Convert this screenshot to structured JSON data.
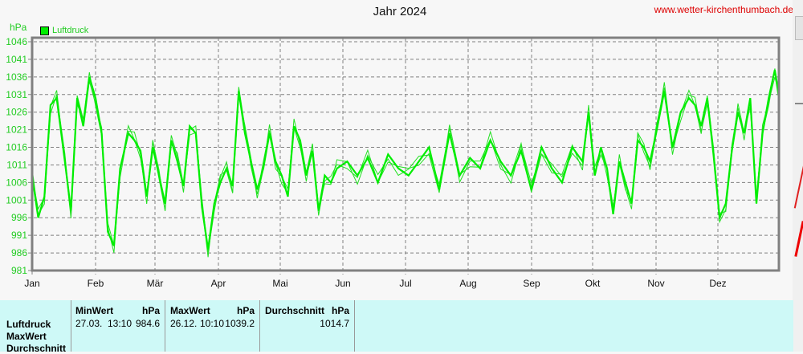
{
  "header": {
    "title": "Jahr 2024",
    "website": "www.wetter-kirchenthumbach.de",
    "unit": "hPa",
    "legend_label": "Luftdruck",
    "legend_color": "#00ee00"
  },
  "chart_data": {
    "type": "line",
    "title": "Jahr 2024",
    "xlabel": "",
    "ylabel": "hPa",
    "ylim": [
      981,
      1046
    ],
    "yticks": [
      1046,
      1041,
      1036,
      1031,
      1026,
      1021,
      1016,
      1011,
      1006,
      1001,
      996,
      991,
      986,
      981
    ],
    "xticks": [
      "Jan",
      "Feb",
      "Mär",
      "Apr",
      "Mai",
      "Jun",
      "Jul",
      "Aug",
      "Sep",
      "Okt",
      "Nov",
      "Dez"
    ],
    "grid": true,
    "legend_position": "top-left",
    "series": [
      {
        "name": "Luftdruck",
        "color": "#00ee00",
        "x_day": [
          1,
          4,
          7,
          10,
          13,
          17,
          20,
          23,
          26,
          29,
          32,
          35,
          38,
          41,
          44,
          48,
          51,
          54,
          57,
          60,
          63,
          66,
          69,
          72,
          75,
          78,
          81,
          84,
          87,
          90,
          93,
          96,
          99,
          102,
          105,
          108,
          111,
          114,
          117,
          120,
          123,
          126,
          129,
          132,
          135,
          138,
          141,
          144,
          147,
          150,
          155,
          160,
          165,
          170,
          175,
          180,
          185,
          190,
          195,
          200,
          205,
          210,
          215,
          220,
          225,
          230,
          235,
          240,
          245,
          250,
          255,
          260,
          265,
          270,
          273,
          276,
          279,
          282,
          285,
          288,
          291,
          294,
          297,
          300,
          303,
          306,
          310,
          314,
          318,
          322,
          325,
          328,
          331,
          334,
          337,
          340,
          343,
          346,
          349,
          352,
          355,
          358,
          361,
          364,
          366
        ],
        "values": [
          1008,
          996,
          1002,
          1028,
          1030,
          1012,
          998,
          1030,
          1022,
          1036,
          1030,
          1020,
          992,
          988,
          1010,
          1020,
          1018,
          1015,
          1002,
          1016,
          1008,
          1000,
          1018,
          1012,
          1005,
          1022,
          1020,
          999,
          987,
          1000,
          1006,
          1010,
          1005,
          1032,
          1020,
          1012,
          1004,
          1010,
          1020,
          1012,
          1008,
          1002,
          1022,
          1018,
          1008,
          1015,
          998,
          1008,
          1006,
          1010,
          1012,
          1008,
          1013,
          1006,
          1014,
          1010,
          1008,
          1012,
          1016,
          1004,
          1020,
          1008,
          1013,
          1010,
          1018,
          1012,
          1008,
          1015,
          1004,
          1016,
          1010,
          1006,
          1016,
          1012,
          1026,
          1008,
          1016,
          1010,
          997,
          1012,
          1006,
          1000,
          1018,
          1016,
          1012,
          1020,
          1032,
          1016,
          1026,
          1030,
          1028,
          1022,
          1030,
          1014,
          996,
          1000,
          1015,
          1026,
          1020,
          1030,
          1000,
          1020,
          1030,
          1038,
          1030
        ]
      }
    ]
  },
  "table": {
    "row_labels": [
      "Luftdruck",
      "MaxWert",
      "Durchschnitt"
    ],
    "min": {
      "header": "MinWert",
      "unit": "hPa",
      "date": "27.03.",
      "time": "13:10",
      "value": "984.6"
    },
    "max": {
      "header": "MaxWert",
      "unit": "hPa",
      "date": "26.12.",
      "time": "10:10",
      "value": "1039.2"
    },
    "avg": {
      "header": "Durchschnitt",
      "unit": "hPa",
      "value": "1014.7"
    }
  }
}
